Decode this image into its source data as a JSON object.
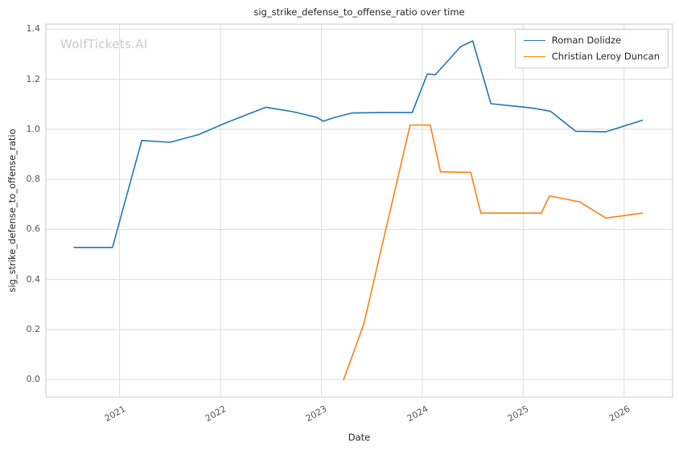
{
  "chart_data": {
    "type": "line",
    "title": "sig_strike_defense_to_offense_ratio over time",
    "xlabel": "Date",
    "ylabel": "sig_strike_defense_to_offense_ratio",
    "watermark": "WolfTickets.AI",
    "grid": true,
    "legend_position": "top-right",
    "xlim": [
      2020.27,
      2026.48
    ],
    "ylim": [
      -0.07,
      1.42
    ],
    "xticks": [
      2021,
      2022,
      2023,
      2024,
      2025,
      2026
    ],
    "yticks": [
      0.0,
      0.2,
      0.4,
      0.6,
      0.8,
      1.0,
      1.2,
      1.4
    ],
    "series": [
      {
        "name": "Roman Dolidze",
        "color": "#1f77b4",
        "points": [
          [
            2020.55,
            0.528
          ],
          [
            2020.93,
            0.528
          ],
          [
            2021.22,
            0.955
          ],
          [
            2021.5,
            0.948
          ],
          [
            2021.78,
            0.978
          ],
          [
            2022.05,
            1.025
          ],
          [
            2022.45,
            1.088
          ],
          [
            2022.72,
            1.07
          ],
          [
            2022.95,
            1.048
          ],
          [
            2023.02,
            1.032
          ],
          [
            2023.12,
            1.046
          ],
          [
            2023.3,
            1.065
          ],
          [
            2023.6,
            1.067
          ],
          [
            2023.9,
            1.067
          ],
          [
            2024.05,
            1.221
          ],
          [
            2024.13,
            1.218
          ],
          [
            2024.38,
            1.33
          ],
          [
            2024.5,
            1.353
          ],
          [
            2024.68,
            1.102
          ],
          [
            2024.92,
            1.092
          ],
          [
            2025.1,
            1.084
          ],
          [
            2025.27,
            1.072
          ],
          [
            2025.52,
            0.992
          ],
          [
            2025.82,
            0.99
          ],
          [
            2026.18,
            1.036
          ]
        ]
      },
      {
        "name": "Christian Leroy Duncan",
        "color": "#ff7f0e",
        "points": [
          [
            2023.22,
            0.0
          ],
          [
            2023.42,
            0.22
          ],
          [
            2023.88,
            1.017
          ],
          [
            2024.08,
            1.017
          ],
          [
            2024.18,
            0.83
          ],
          [
            2024.48,
            0.828
          ],
          [
            2024.58,
            0.665
          ],
          [
            2025.18,
            0.665
          ],
          [
            2025.26,
            0.734
          ],
          [
            2025.56,
            0.71
          ],
          [
            2025.82,
            0.645
          ],
          [
            2026.18,
            0.665
          ]
        ]
      }
    ]
  }
}
